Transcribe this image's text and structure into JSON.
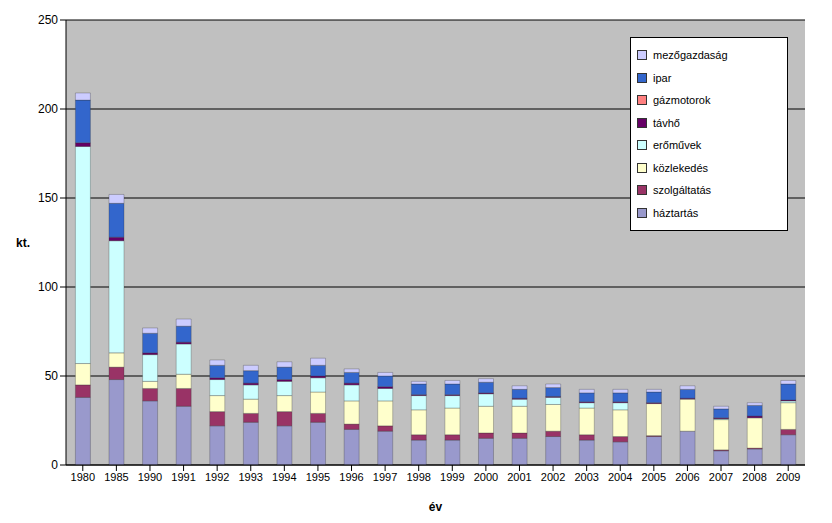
{
  "chart_data": {
    "type": "bar",
    "stacked": true,
    "x_label": "év",
    "y_label": "kt.",
    "categories": [
      "1980",
      "1985",
      "1990",
      "1991",
      "1992",
      "1993",
      "1994",
      "1995",
      "1996",
      "1997",
      "1998",
      "1999",
      "2000",
      "2001",
      "2002",
      "2003",
      "2004",
      "2005",
      "2006",
      "2007",
      "2008",
      "2009"
    ],
    "series": [
      {
        "name": "háztartás",
        "color": "#9999cc",
        "values": [
          38,
          48,
          36,
          33,
          22,
          24,
          22,
          24,
          20,
          19,
          14,
          14,
          15,
          15,
          16,
          14,
          13,
          16,
          19,
          8,
          9,
          17
        ]
      },
      {
        "name": "szolgáltatás",
        "color": "#993366",
        "values": [
          7,
          7,
          7,
          10,
          8,
          5,
          8,
          5,
          3,
          3,
          3,
          3,
          3,
          3,
          3,
          3,
          3,
          0.5,
          0,
          0.5,
          0.5,
          3
        ]
      },
      {
        "name": "közlekedés",
        "color": "#ffffcc",
        "values": [
          12,
          8,
          4,
          8,
          9,
          8,
          9,
          12,
          13,
          14,
          14,
          15,
          15,
          15,
          15,
          15,
          15,
          18,
          18,
          17,
          17,
          15
        ]
      },
      {
        "name": "erőművek",
        "color": "#ccffff",
        "values": [
          122,
          63,
          15,
          17,
          9,
          8,
          8,
          8,
          9,
          7,
          8,
          7,
          7,
          4,
          4,
          3,
          4,
          0,
          0,
          0.5,
          0,
          1
        ]
      },
      {
        "name": "távhő",
        "color": "#660066",
        "values": [
          2,
          2,
          1,
          1,
          1,
          1,
          1,
          1,
          1,
          1,
          0.5,
          0.5,
          0.5,
          0.5,
          0.5,
          0.5,
          0.5,
          0.5,
          0.5,
          0.5,
          1,
          0.5
        ]
      },
      {
        "name": "gázmotorok",
        "color": "#ff8080",
        "values": [
          0,
          0,
          0,
          0,
          0,
          0,
          0,
          0,
          0,
          0,
          0,
          0,
          0,
          0,
          0,
          0,
          0,
          0,
          0,
          0,
          0,
          0
        ]
      },
      {
        "name": "ipar",
        "color": "#3366cc",
        "values": [
          24,
          19,
          11,
          9,
          7,
          7,
          7,
          6,
          6,
          6,
          6,
          6,
          6,
          5,
          5,
          5,
          5,
          6,
          5,
          5,
          6,
          9
        ]
      },
      {
        "name": "mezőgazdaság",
        "color": "#ccccff",
        "values": [
          4,
          5,
          3,
          4,
          3,
          3,
          3,
          4,
          2,
          2,
          1.5,
          2,
          2,
          2,
          2,
          2,
          2,
          1.5,
          2,
          1.5,
          1.5,
          2
        ]
      }
    ],
    "ylim": [
      0,
      250
    ],
    "yticks": [
      0,
      50,
      100,
      150,
      200,
      250
    ],
    "grid": true,
    "legend": "upper right"
  }
}
